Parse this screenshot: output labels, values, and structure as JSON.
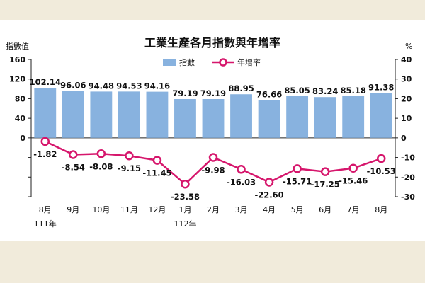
{
  "chart_data": {
    "type": "bar+line",
    "title": "工業生產各月指數與年增率",
    "left_axis_label": "指數值",
    "right_axis_label": "%",
    "categories": [
      "8月",
      "9月",
      "10月",
      "11月",
      "12月",
      "1月",
      "2月",
      "3月",
      "4月",
      "5月",
      "6月",
      "7月",
      "8月"
    ],
    "year_labels": [
      "111年",
      "112年"
    ],
    "left_ticks": [
      160,
      120,
      80,
      40,
      0
    ],
    "right_ticks": [
      40,
      30,
      20,
      10,
      0,
      -10,
      -20,
      -30
    ],
    "left_ylim": [
      -120,
      160
    ],
    "right_ylim": [
      -30,
      40
    ],
    "series": [
      {
        "name": "指數",
        "type": "bar",
        "axis": "left",
        "color": "#88b2df",
        "values": [
          102.14,
          96.06,
          94.48,
          94.53,
          94.16,
          79.19,
          79.19,
          88.95,
          76.66,
          85.05,
          83.24,
          85.18,
          91.38
        ],
        "labels": [
          "102.14",
          "96.06",
          "94.48",
          "94.53",
          "94.16",
          "79.19",
          "79.19",
          "88.95",
          "76.66",
          "85.05",
          "83.24",
          "85.18",
          "91.38"
        ]
      },
      {
        "name": "年增率",
        "type": "line",
        "axis": "right",
        "color": "#d6166c",
        "values": [
          -1.82,
          -8.54,
          -8.08,
          -9.15,
          -11.45,
          -23.58,
          -9.98,
          -16.03,
          -22.6,
          -15.71,
          -17.25,
          -15.46,
          -10.53
        ],
        "labels": [
          "-1.82",
          "-8.54",
          "-8.08",
          "-9.15",
          "-11.45",
          "-23.58",
          "-9.98",
          "-16.03",
          "-22.60",
          "-15.71",
          "-17.25",
          "-15.46",
          "-10.53"
        ]
      }
    ]
  }
}
